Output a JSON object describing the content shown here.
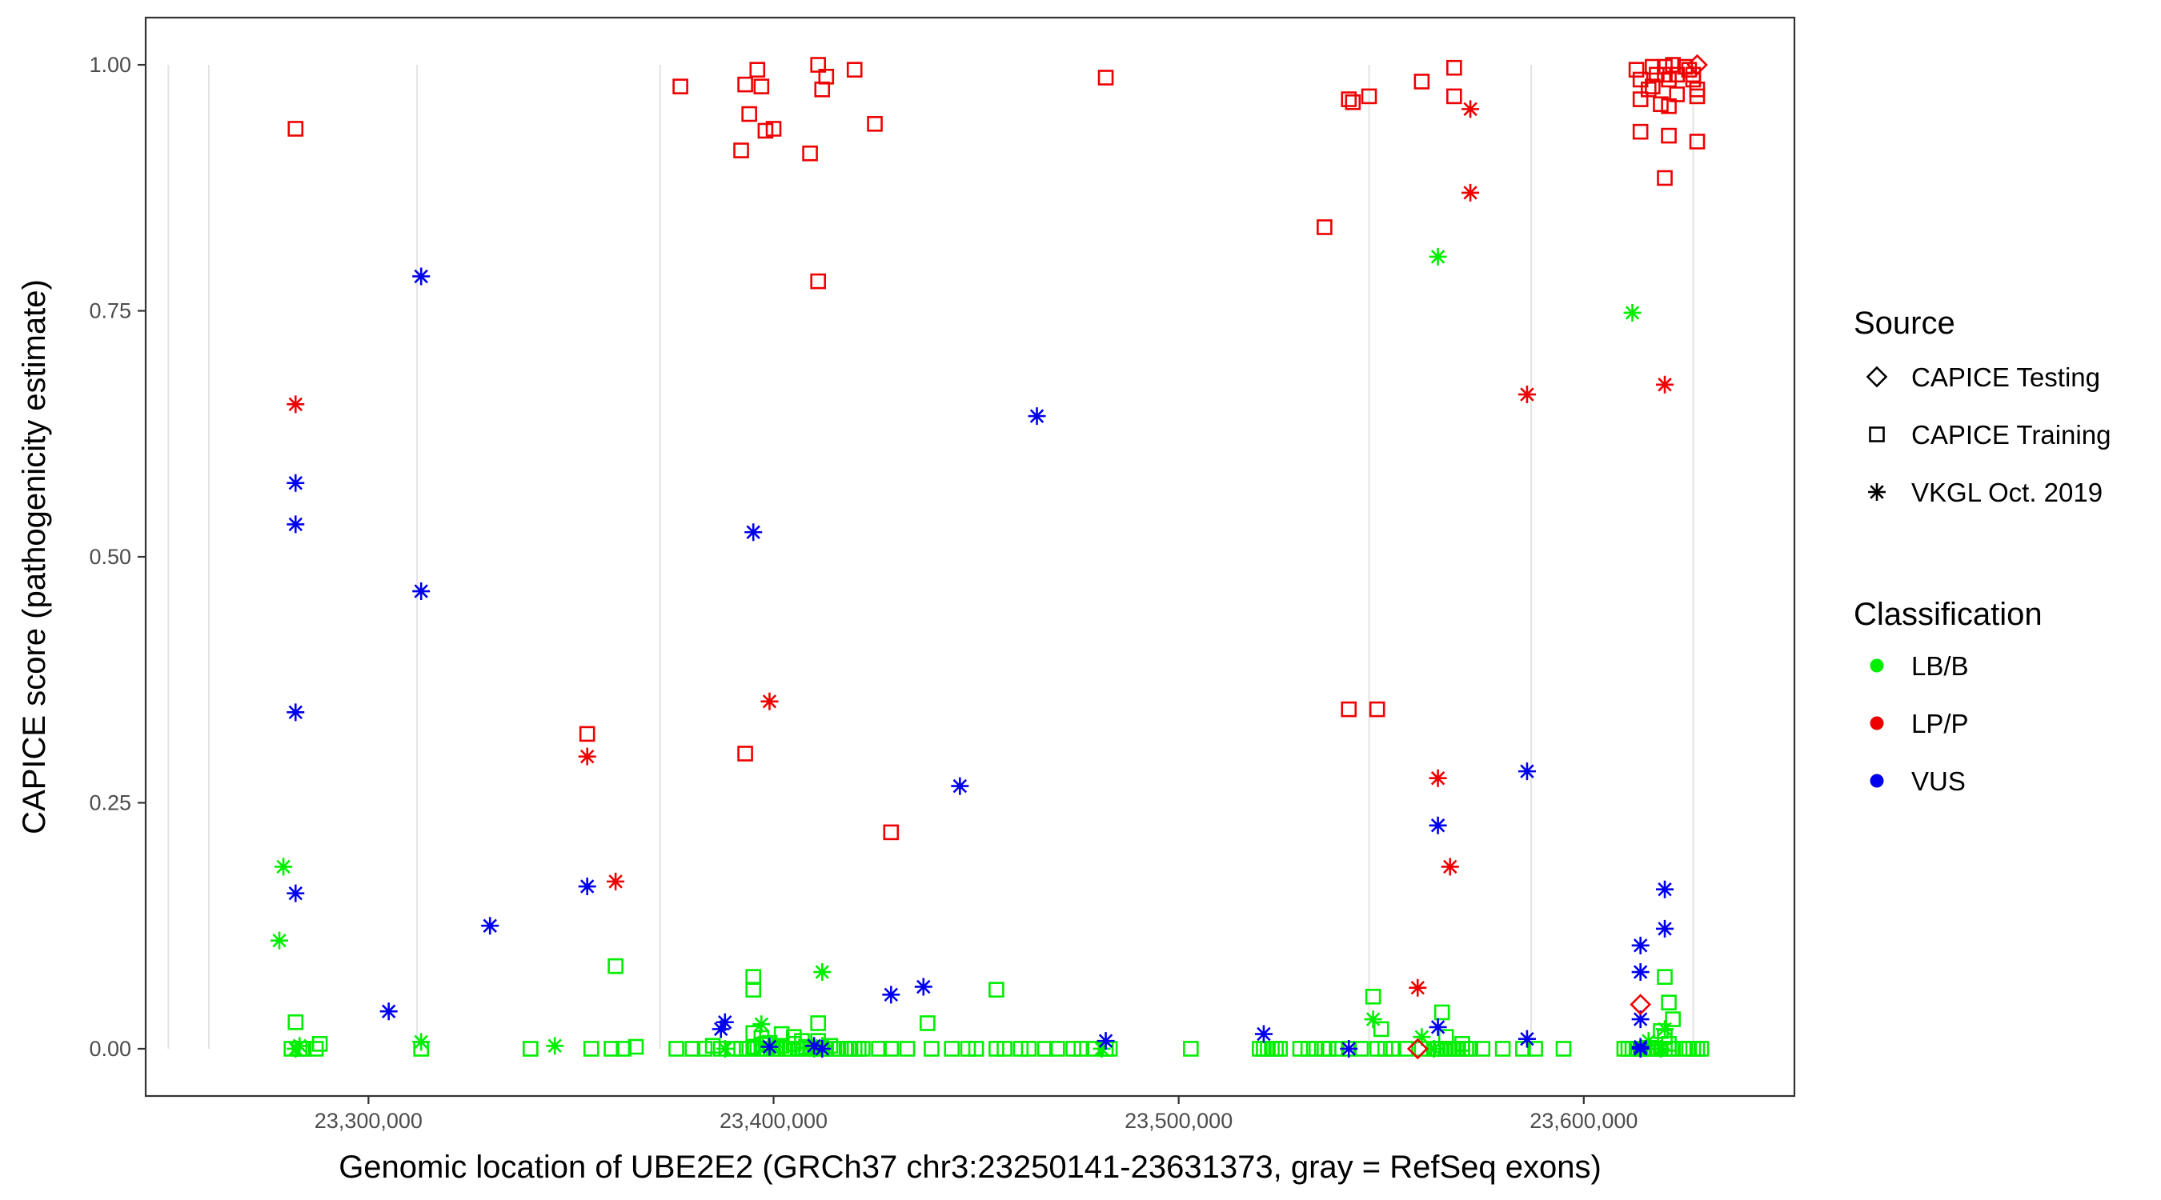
{
  "chart_data": {
    "type": "scatter",
    "xlabel": "Genomic location of UBE2E2 (GRCh37 chr3:23250141-23631373, gray = RefSeq exons)",
    "ylabel": "CAPICE score (pathogenicity estimate)",
    "xlim": [
      23245000,
      23652000
    ],
    "ylim": [
      -0.048,
      1.048
    ],
    "x_ticks": [
      23300000,
      23400000,
      23500000,
      23600000
    ],
    "x_tick_labels": [
      "23,300,000",
      "23,400,000",
      "23,500,000",
      "23,600,000"
    ],
    "y_ticks": [
      0,
      0.25,
      0.5,
      0.75,
      1
    ],
    "y_tick_labels": [
      "0.00",
      "0.25",
      "0.50",
      "0.75",
      "1.00"
    ],
    "exon_positions": [
      23250600,
      23260600,
      23312000,
      23372000,
      23547000,
      23587000,
      23627000
    ],
    "grid": false,
    "colors": {
      "LB/B": "#00ee00",
      "LP/P": "#ee0000",
      "VUS": "#0000ee",
      "exon": "#e3e3e3"
    },
    "legend": {
      "placement": "right",
      "source_title": "Source",
      "source_items": [
        {
          "label": "CAPICE Testing",
          "shape": "diamond"
        },
        {
          "label": "CAPICE Training",
          "shape": "square"
        },
        {
          "label": "VKGL Oct. 2019",
          "shape": "asterisk"
        }
      ],
      "class_title": "Classification",
      "class_items": [
        {
          "label": "LB/B",
          "color": "#00ee00"
        },
        {
          "label": "LP/P",
          "color": "#ee0000"
        },
        {
          "label": "VUS",
          "color": "#0000ee"
        }
      ]
    },
    "series": [
      {
        "source": "CAPICE Training",
        "class": "LP/P",
        "x": [
          23282000,
          23377000,
          23393000,
          23394000,
          23398000,
          23392000,
          23396000,
          23397000,
          23400000,
          23409000,
          23411000,
          23412000,
          23413000,
          23420000,
          23425000,
          23411000,
          23393000,
          23429000,
          23354000,
          23482000,
          23536000,
          23542000,
          23543000,
          23547000,
          23560000,
          23568000,
          23568000,
          23542000,
          23549000,
          23613000,
          23614000,
          23616000,
          23617000,
          23618000,
          23619000,
          23620000,
          23621000,
          23622000,
          23623000,
          23625000,
          23626000,
          23627000,
          23628000,
          23614000,
          23617000,
          23620000,
          23621000,
          23623000,
          23627000,
          23628000,
          23614000,
          23620000,
          23621000,
          23628000
        ],
        "y": [
          0.935,
          0.978,
          0.98,
          0.95,
          0.933,
          0.913,
          0.995,
          0.978,
          0.935,
          0.91,
          1.0,
          0.975,
          0.988,
          0.995,
          0.94,
          0.78,
          0.3,
          0.22,
          0.32,
          0.987,
          0.835,
          0.965,
          0.962,
          0.968,
          0.983,
          0.997,
          0.968,
          0.345,
          0.345,
          0.995,
          0.985,
          0.975,
          0.998,
          0.99,
          0.96,
          0.998,
          0.985,
          1.0,
          0.99,
          0.998,
          0.995,
          0.985,
          0.975,
          0.965,
          0.978,
          0.99,
          0.958,
          0.97,
          0.99,
          0.968,
          0.932,
          0.885,
          0.928,
          0.922
        ]
      },
      {
        "source": "CAPICE Training",
        "class": "LB/B",
        "x": [
          23282000,
          23281000,
          23283000,
          23284000,
          23287000,
          23288000,
          23313000,
          23340000,
          23355000,
          23360000,
          23363000,
          23366000,
          23376000,
          23380000,
          23383000,
          23385000,
          23387000,
          23390000,
          23392000,
          23394000,
          23395000,
          23396000,
          23397000,
          23398000,
          23399000,
          23400000,
          23401000,
          23402000,
          23403000,
          23404000,
          23405000,
          23406000,
          23407000,
          23408000,
          23409000,
          23410000,
          23411000,
          23412000,
          23413000,
          23414000,
          23415000,
          23416000,
          23418000,
          23419000,
          23420000,
          23421000,
          23422000,
          23426000,
          23429000,
          23433000,
          23439000,
          23444000,
          23448000,
          23450000,
          23455000,
          23457000,
          23461000,
          23463000,
          23467000,
          23470000,
          23474000,
          23476000,
          23479000,
          23482000,
          23483000,
          23503000,
          23520000,
          23521000,
          23522000,
          23523000,
          23524000,
          23525000,
          23530000,
          23532000,
          23534000,
          23536000,
          23537000,
          23539000,
          23542000,
          23545000,
          23549000,
          23551000,
          23553000,
          23556000,
          23560000,
          23563000,
          23564000,
          23565000,
          23566000,
          23567000,
          23568000,
          23569000,
          23570000,
          23571000,
          23572000,
          23575000,
          23580000,
          23585000,
          23588000,
          23595000,
          23610000,
          23611000,
          23612000,
          23613000,
          23614000,
          23615000,
          23616000,
          23617000,
          23618000,
          23619000,
          23620000,
          23621000,
          23622000,
          23625000,
          23626000,
          23627000,
          23628000,
          23629000,
          23395000,
          23395000,
          23411000,
          23397000,
          23402000,
          23405000,
          23407000,
          23395000,
          23398000,
          23438000,
          23455000,
          23361000,
          23548000,
          23550000,
          23565000,
          23566000,
          23570000,
          23620000,
          23621000,
          23622000,
          23619000,
          23620000,
          23621000
        ],
        "y": [
          0.027,
          0.0,
          0.0,
          0.0,
          0.0,
          0.005,
          0.0,
          0.0,
          0.0,
          0.0,
          0.0,
          0.002,
          0.0,
          0.0,
          0.0,
          0.003,
          0.0,
          0.0,
          0.0,
          0.0,
          0.002,
          0.0,
          0.004,
          0.0,
          0.006,
          0.0,
          0.0,
          0.003,
          0.0,
          0.0,
          0.005,
          0.0,
          0.0,
          0.002,
          0.0,
          0.0,
          0.008,
          0.0,
          0.0,
          0.003,
          0.0,
          0.0,
          0.0,
          0.0,
          0.0,
          0.0,
          0.0,
          0.0,
          0.0,
          0.0,
          0.0,
          0.0,
          0.0,
          0.0,
          0.0,
          0.0,
          0.0,
          0.0,
          0.0,
          0.0,
          0.0,
          0.0,
          0.0,
          0.0,
          0.0,
          0.0,
          0.0,
          0.0,
          0.0,
          0.0,
          0.0,
          0.0,
          0.0,
          0.0,
          0.0,
          0.0,
          0.0,
          0.0,
          0.0,
          0.0,
          0.0,
          0.0,
          0.0,
          0.0,
          0.0,
          0.0,
          0.0,
          0.0,
          0.0,
          0.0,
          0.0,
          0.0,
          0.0,
          0.0,
          0.0,
          0.0,
          0.0,
          0.0,
          0.0,
          0.0,
          0.0,
          0.0,
          0.0,
          0.0,
          0.0,
          0.0,
          0.0,
          0.0,
          0.0,
          0.0,
          0.0,
          0.0,
          0.0,
          0.0,
          0.0,
          0.0,
          0.0,
          0.0,
          0.073,
          0.06,
          0.026,
          0.011,
          0.015,
          0.012,
          0.008,
          0.016,
          0.005,
          0.026,
          0.06,
          0.084,
          0.053,
          0.02,
          0.037,
          0.012,
          0.005,
          0.073,
          0.047,
          0.03,
          0.018,
          0.012,
          0.005
        ]
      },
      {
        "source": "VKGL Oct. 2019",
        "class": "LP/P",
        "x": [
          23282000,
          23354000,
          23361000,
          23399000,
          23559000,
          23564000,
          23567000,
          23572000,
          23572000,
          23586000,
          23620000
        ],
        "y": [
          0.655,
          0.297,
          0.17,
          0.353,
          0.062,
          0.275,
          0.185,
          0.955,
          0.87,
          0.665,
          0.675
        ]
      },
      {
        "source": "VKGL Oct. 2019",
        "class": "LB/B",
        "x": [
          23279000,
          23278000,
          23282000,
          23313000,
          23346000,
          23397000,
          23412000,
          23564000,
          23612000,
          23283000,
          23388000,
          23412000,
          23400000,
          23410000,
          23548000,
          23560000,
          23563000,
          23614000,
          23616000,
          23619000,
          23620000,
          23481000
        ],
        "y": [
          0.185,
          0.11,
          0.0,
          0.007,
          0.003,
          0.025,
          0.078,
          0.805,
          0.748,
          0.003,
          0.0,
          0.003,
          0.002,
          0.0,
          0.03,
          0.012,
          0.0,
          0.0,
          0.008,
          0.0,
          0.02,
          0.0
        ]
      },
      {
        "source": "VKGL Oct. 2019",
        "class": "VUS",
        "x": [
          23282000,
          23282000,
          23282000,
          23282000,
          23313000,
          23313000,
          23305000,
          23330000,
          23354000,
          23395000,
          23387000,
          23388000,
          23399000,
          23410000,
          23412000,
          23429000,
          23437000,
          23446000,
          23465000,
          23482000,
          23521000,
          23542000,
          23564000,
          23564000,
          23586000,
          23586000,
          23614000,
          23614000,
          23614000,
          23614000,
          23614000,
          23620000,
          23620000
        ],
        "y": [
          0.575,
          0.533,
          0.342,
          0.158,
          0.785,
          0.465,
          0.038,
          0.125,
          0.165,
          0.525,
          0.02,
          0.027,
          0.002,
          0.003,
          0.0,
          0.055,
          0.063,
          0.267,
          0.643,
          0.008,
          0.015,
          0.0,
          0.227,
          0.022,
          0.282,
          0.01,
          0.105,
          0.078,
          0.03,
          0.002,
          0.0,
          0.162,
          0.122
        ]
      },
      {
        "source": "CAPICE Testing",
        "class": "LP/P",
        "x": [
          23628000,
          23614000,
          23559000
        ],
        "y": [
          1.0,
          0.045,
          0.0
        ]
      }
    ]
  }
}
